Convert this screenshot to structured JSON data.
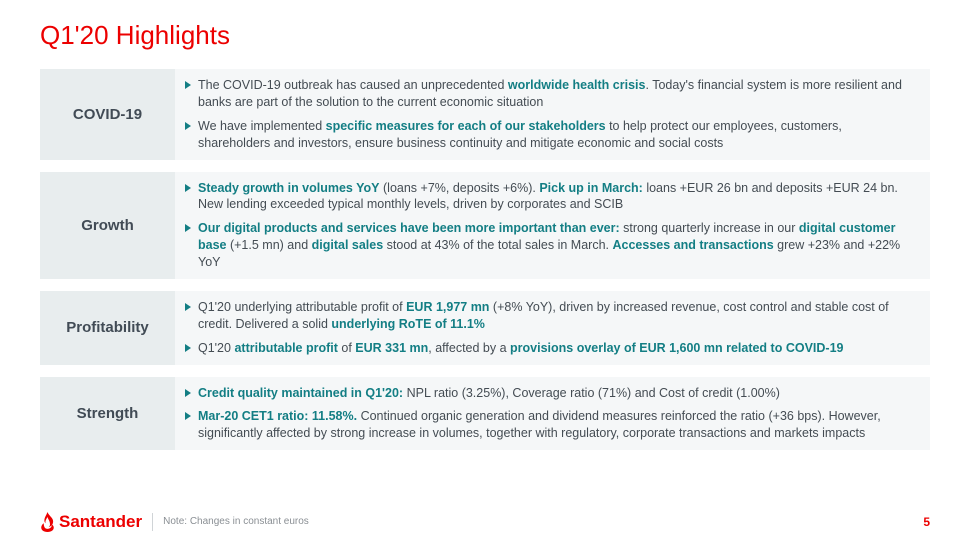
{
  "title": "Q1'20 Highlights",
  "accent": "#ec0000",
  "teal": "#137e84",
  "text": "#444c53",
  "label_bg": "#e8edee",
  "content_bg": "#f5f7f8",
  "rows": [
    {
      "label": "COVID-19",
      "bullets": [
        "The COVID-19 outbreak has caused an unprecedented <b>worldwide health crisis</b>. Today's financial system is more resilient and banks are part of the solution to the current economic situation",
        "We have implemented <b>specific measures for each of our stakeholders</b> to help protect our employees, customers, shareholders and investors, ensure business continuity and mitigate economic and social costs"
      ]
    },
    {
      "label": "Growth",
      "bullets": [
        "<b>Steady growth in volumes YoY</b> (loans +7%, deposits +6%). <b>Pick up in March:</b> loans +EUR 26 bn and deposits +EUR 24 bn. New lending exceeded typical monthly levels, driven by corporates and SCIB",
        "<b>Our digital products and services have been more important than ever:</b> strong quarterly increase in our <b>digital customer base</b> (+1.5 mn) and <b>digital sales</b> stood at 43% of the total sales in March. <b>Accesses and transactions</b> grew +23% and +22% YoY"
      ]
    },
    {
      "label": "Profitability",
      "bullets": [
        "Q1'20 underlying attributable profit of <b>EUR 1,977 mn</b> (+8% YoY), driven by increased revenue, cost control and stable cost of credit. Delivered a solid <b>underlying RoTE of 11.1%</b>",
        "Q1'20 <b>attributable profit</b> of <b>EUR 331 mn</b>, affected by a <b>provisions overlay of EUR 1,600 mn related to COVID-19</b>"
      ]
    },
    {
      "label": "Strength",
      "bullets": [
        "<b>Credit quality maintained in Q1'20:</b> NPL ratio (3.25%), Coverage ratio (71%) and Cost of credit (1.00%)",
        "<b>Mar-20 CET1 ratio: 11.58%.</b> Continued organic generation and dividend measures reinforced the ratio (+36 bps). However, significantly affected by strong increase in volumes, together with regulatory, corporate transactions and markets impacts"
      ]
    }
  ],
  "logo_text": "Santander",
  "note": "Note: Changes in constant euros",
  "page": "5"
}
